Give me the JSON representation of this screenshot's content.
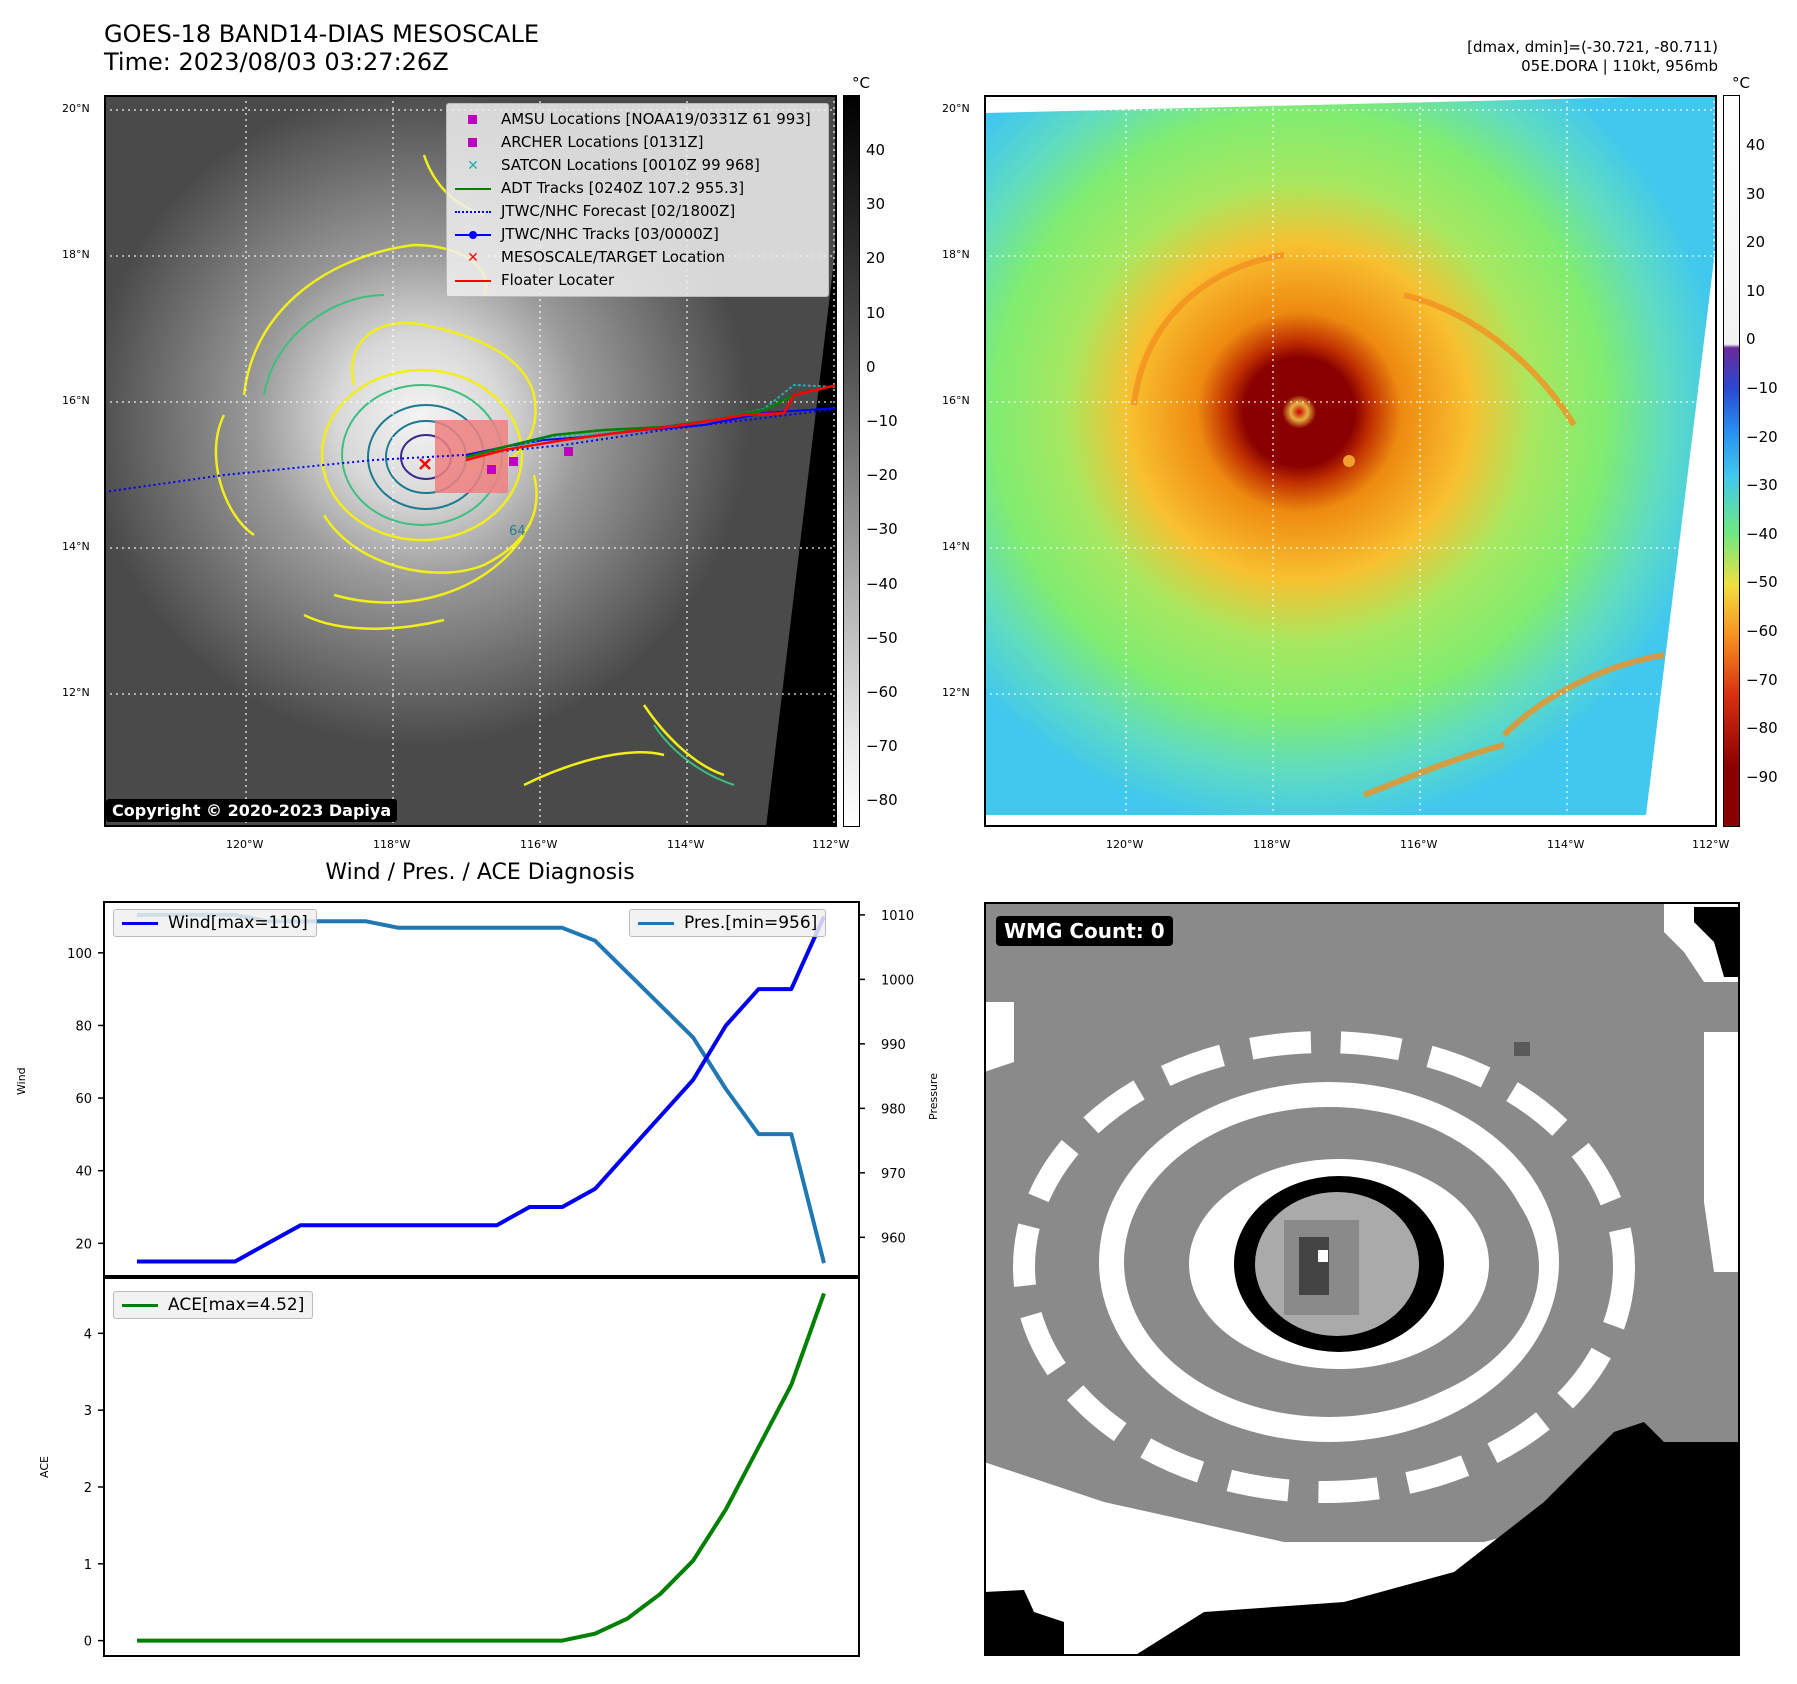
{
  "header": {
    "title_line1": "GOES-18 BAND14-DIAS MESOSCALE",
    "title_line2": "Time: 2023/08/03 03:27:26Z",
    "dmax_line": "[dmax, dmin]=(-30.721, -80.711)",
    "storm_line": "05E.DORA | 110kt, 956mb"
  },
  "maps": {
    "lat_labels": [
      "20°N",
      "18°N",
      "16°N",
      "14°N",
      "12°N"
    ],
    "lon_labels": [
      "120°W",
      "118°W",
      "116°W",
      "114°W",
      "112°W"
    ],
    "unit": "°C",
    "left_colorbar_ticks": [
      "40",
      "30",
      "20",
      "10",
      "0",
      "−10",
      "−20",
      "−30",
      "−40",
      "−50",
      "−60",
      "−70",
      "−80"
    ],
    "right_colorbar_ticks": [
      "40",
      "30",
      "20",
      "10",
      "0",
      "−10",
      "−20",
      "−30",
      "−40",
      "−50",
      "−60",
      "−70",
      "−80",
      "−90"
    ],
    "copyright": "Copyright © 2020-2023 Dapiya",
    "contour_label": "64",
    "legend": [
      {
        "label": "AMSU Locations [NOAA19/0331Z 61 993]",
        "color": "#c000c0",
        "symbol": "square"
      },
      {
        "label": "ARCHER Locations [0131Z]",
        "color": "#c000c0",
        "symbol": "square"
      },
      {
        "label": "SATCON Locations [0010Z 99 968]",
        "color": "#20b0b0",
        "symbol": "x"
      },
      {
        "label": "ADT Tracks [0240Z 107.2 955.3]",
        "color": "#008000",
        "symbol": "line"
      },
      {
        "label": "JTWC/NHC Forecast [02/1800Z]",
        "color": "#0000ff",
        "symbol": "dotted"
      },
      {
        "label": "JTWC/NHC Tracks [03/0000Z]",
        "color": "#0000ff",
        "symbol": "line-dot"
      },
      {
        "label": "MESOSCALE/TARGET Location",
        "color": "#ff0000",
        "symbol": "x"
      },
      {
        "label": "Floater Locater",
        "color": "#ff0000",
        "symbol": "line"
      }
    ]
  },
  "diagnosis": {
    "title": "Wind / Pres. / ACE Diagnosis",
    "wind_ylabel": "Wind",
    "pres_ylabel": "Pressure",
    "ace_ylabel": "ACE",
    "wind_legend": "Wind[max=110]",
    "pres_legend": "Pres.[min=956]",
    "ace_legend": "ACE[max=4.52]",
    "wind_ticks": [
      "100",
      "80",
      "60",
      "40",
      "20"
    ],
    "pres_ticks": [
      "1010",
      "1000",
      "990",
      "980",
      "970",
      "960"
    ],
    "ace_ticks": [
      "4",
      "3",
      "2",
      "1",
      "0"
    ]
  },
  "wmg": {
    "label": "WMG Count: 0"
  },
  "chart_data": [
    {
      "type": "line",
      "title": "Wind / Pres. / ACE Diagnosis",
      "ylabel": "Wind",
      "ylim": [
        11,
        114
      ],
      "series": [
        {
          "name": "Wind[max=110]",
          "color": "#0000ee",
          "values": [
            15,
            15,
            15,
            15,
            20,
            25,
            25,
            25,
            25,
            25,
            25,
            25,
            30,
            30,
            35,
            45,
            55,
            65,
            80,
            90,
            90,
            110
          ]
        }
      ]
    },
    {
      "type": "line",
      "ylabel": "Pressure",
      "ylim": [
        954,
        1012
      ],
      "series": [
        {
          "name": "Pres.[min=956]",
          "color": "#1f77b4",
          "values": [
            1010,
            1010,
            1010,
            1010,
            1009,
            1009,
            1009,
            1009,
            1008,
            1008,
            1008,
            1008,
            1008,
            1008,
            1006,
            1001,
            996,
            991,
            983,
            976,
            976,
            956
          ]
        }
      ]
    },
    {
      "type": "line",
      "ylabel": "ACE",
      "ylim": [
        -0.2,
        4.72
      ],
      "series": [
        {
          "name": "ACE[max=4.52]",
          "color": "#008000",
          "values": [
            0,
            0,
            0,
            0,
            0,
            0,
            0,
            0,
            0,
            0,
            0,
            0,
            0,
            0,
            0.09,
            0.29,
            0.61,
            1.04,
            1.71,
            2.52,
            3.33,
            4.52
          ]
        }
      ]
    }
  ]
}
